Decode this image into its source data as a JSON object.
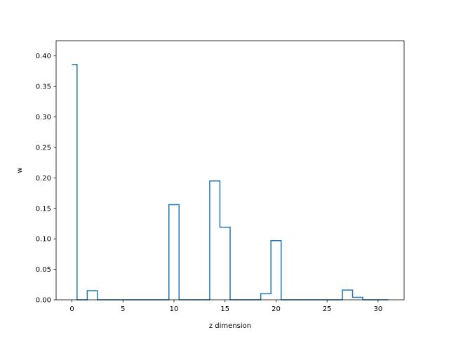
{
  "chart_data": {
    "type": "line",
    "style": "step-mid",
    "title": "",
    "xlabel": "z dimension",
    "ylabel": "w",
    "xlim": [
      -1.55,
      32.55
    ],
    "ylim": [
      0,
      0.425
    ],
    "xticks": [
      0,
      5,
      10,
      15,
      20,
      25,
      30
    ],
    "yticks": [
      0.0,
      0.05,
      0.1,
      0.15,
      0.2,
      0.25,
      0.3,
      0.35,
      0.4
    ],
    "xtick_labels": [
      "0",
      "5",
      "10",
      "15",
      "20",
      "25",
      "30"
    ],
    "ytick_labels": [
      "0.00",
      "0.05",
      "0.10",
      "0.15",
      "0.20",
      "0.25",
      "0.30",
      "0.35",
      "0.40"
    ],
    "grid": false,
    "line_color": "#1f77b4",
    "x": [
      0,
      1,
      2,
      3,
      4,
      5,
      6,
      7,
      8,
      9,
      10,
      11,
      12,
      13,
      14,
      15,
      16,
      17,
      18,
      19,
      20,
      21,
      22,
      23,
      24,
      25,
      26,
      27,
      28,
      29,
      30,
      31
    ],
    "values": [
      0.386,
      0,
      0.015,
      0,
      0,
      0,
      0,
      0,
      0,
      0,
      0.156,
      0,
      0,
      0,
      0.195,
      0.119,
      0,
      0,
      0,
      0.01,
      0.097,
      0,
      0,
      0,
      0,
      0,
      0,
      0.016,
      0.004,
      0,
      0,
      0
    ]
  }
}
